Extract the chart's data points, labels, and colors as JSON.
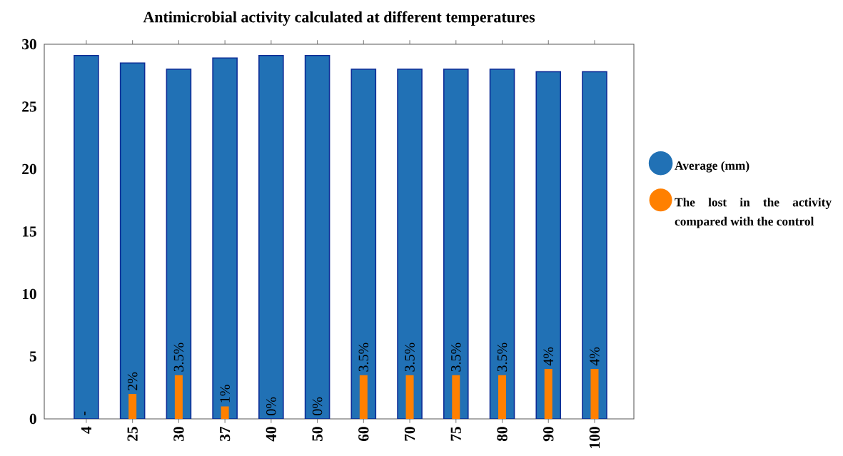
{
  "chart_data": {
    "type": "bar",
    "title": "Antimicrobial activity calculated at different temperatures",
    "categories": [
      "4",
      "25",
      "30",
      "37",
      "40",
      "50",
      "60",
      "70",
      "75",
      "80",
      "90",
      "100"
    ],
    "series": [
      {
        "name": "Average (mm)",
        "color": "#2171b5",
        "values": [
          29.1,
          28.5,
          28.0,
          28.9,
          29.1,
          29.1,
          28.0,
          28.0,
          28.0,
          28.0,
          27.8,
          27.8
        ]
      },
      {
        "name": "The lost in the activity compared with the control",
        "color": "#ff8000",
        "values": [
          null,
          2,
          3.5,
          1,
          0,
          0,
          3.5,
          3.5,
          3.5,
          3.5,
          4,
          4
        ],
        "value_labels": [
          "-",
          "2%",
          "3.5%",
          "1%",
          "0%",
          "0%",
          "3.5%",
          "3.5%",
          "3.5%",
          "3.5%",
          "4%",
          "4%"
        ]
      }
    ],
    "ylim": [
      0,
      30
    ],
    "yticks": [
      0,
      5,
      10,
      15,
      20,
      25,
      30
    ],
    "grid": false,
    "legend": "right"
  }
}
